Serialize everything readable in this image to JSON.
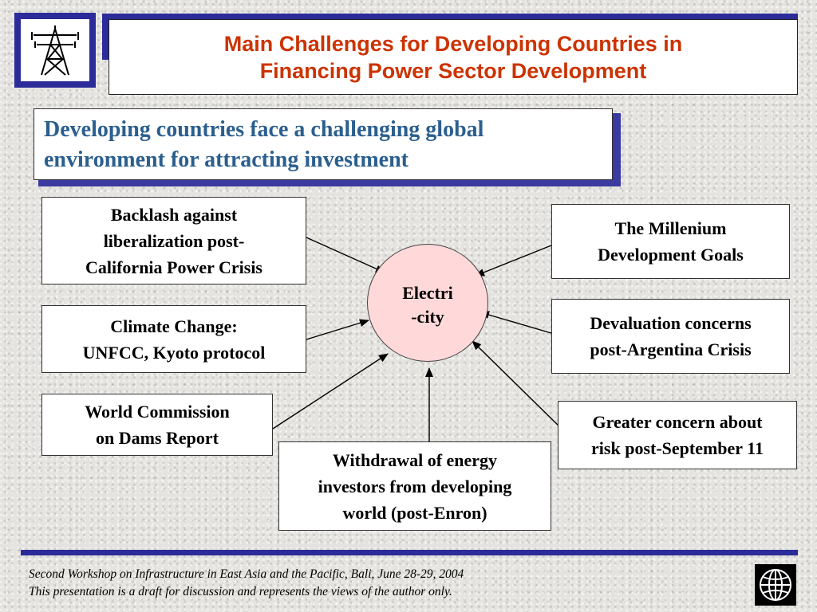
{
  "header": {
    "title_line1": "Main Challenges for Developing Countries in",
    "title_line2": "Financing Power Sector Development"
  },
  "subtitle": {
    "line1": "Developing countries face a challenging global",
    "line2": "environment for attracting investment"
  },
  "hub": {
    "line1": "Electri",
    "line2": "-city",
    "color": "#ffd9d9"
  },
  "factors": {
    "backlash": {
      "line1": "Backlash against",
      "line2": "liberalization post-",
      "line3": "California Power Crisis"
    },
    "climate": {
      "line1": "Climate Change:",
      "line2": "UNFCC, Kyoto protocol"
    },
    "dams": {
      "line1": "World Commission",
      "line2": "on Dams Report"
    },
    "withdrawal": {
      "line1": "Withdrawal of energy",
      "line2": "investors from developing",
      "line3": "world (post-Enron)"
    },
    "millenium": {
      "line1": "The Millenium",
      "line2": "Development Goals"
    },
    "devaluation": {
      "line1": "Devaluation concerns",
      "line2": "post-Argentina Crisis"
    },
    "september": {
      "line1": "Greater concern about",
      "line2": "risk post-September 11"
    }
  },
  "footer": {
    "line1": "Second Workshop on Infrastructure in East Asia and the Pacific, Bali, June 28-29, 2004",
    "line2": "This presentation is a draft for discussion and represents the views of the author only."
  },
  "icons": {
    "logo": "power-pylon-icon",
    "footer_logo": "globe-icon"
  },
  "colors": {
    "title": "#cc3300",
    "subtitle": "#2b5f8f",
    "accent": "#2b2b9a"
  }
}
